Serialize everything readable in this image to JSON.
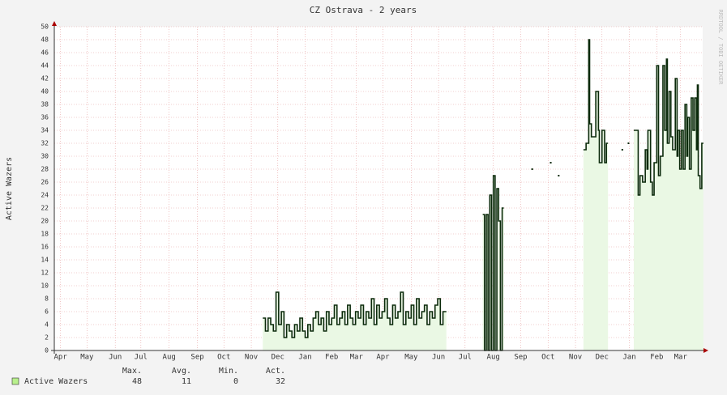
{
  "chart_data": {
    "type": "line",
    "title": "CZ Ostrava - 2 years",
    "y_label": "Active Wazers",
    "watermark": "RRDTOOL / TOBI OETIKER",
    "xlim": [
      0,
      734
    ],
    "ylim": [
      0,
      50
    ],
    "xticks": [
      {
        "value": 7,
        "label": "Apr"
      },
      {
        "value": 37,
        "label": "May"
      },
      {
        "value": 69,
        "label": "Jun"
      },
      {
        "value": 98,
        "label": "Jul"
      },
      {
        "value": 130,
        "label": "Aug"
      },
      {
        "value": 162,
        "label": "Sep"
      },
      {
        "value": 192,
        "label": "Oct"
      },
      {
        "value": 223,
        "label": "Nov"
      },
      {
        "value": 253,
        "label": "Dec"
      },
      {
        "value": 284,
        "label": "Jan"
      },
      {
        "value": 314,
        "label": "Feb"
      },
      {
        "value": 342,
        "label": "Mar"
      },
      {
        "value": 372,
        "label": "Apr"
      },
      {
        "value": 404,
        "label": "May"
      },
      {
        "value": 435,
        "label": "Jun"
      },
      {
        "value": 465,
        "label": "Jul"
      },
      {
        "value": 497,
        "label": "Aug"
      },
      {
        "value": 528,
        "label": "Sep"
      },
      {
        "value": 559,
        "label": "Oct"
      },
      {
        "value": 590,
        "label": "Nov"
      },
      {
        "value": 620,
        "label": "Dec"
      },
      {
        "value": 651,
        "label": "Jan"
      },
      {
        "value": 682,
        "label": "Feb"
      },
      {
        "value": 709,
        "label": "Mar"
      }
    ],
    "yticks": [
      0,
      2,
      4,
      6,
      8,
      10,
      12,
      14,
      16,
      18,
      20,
      22,
      24,
      26,
      28,
      30,
      32,
      34,
      36,
      38,
      40,
      42,
      44,
      46,
      48,
      50
    ],
    "grid": true,
    "x": [
      236,
      239,
      242,
      245,
      248,
      251,
      254,
      257,
      260,
      263,
      266,
      269,
      272,
      275,
      278,
      281,
      284,
      287,
      290,
      293,
      296,
      299,
      302,
      305,
      308,
      311,
      314,
      317,
      320,
      323,
      326,
      329,
      332,
      335,
      338,
      341,
      344,
      347,
      350,
      353,
      356,
      359,
      362,
      365,
      368,
      371,
      374,
      377,
      380,
      383,
      386,
      389,
      392,
      395,
      398,
      401,
      404,
      407,
      410,
      413,
      416,
      419,
      422,
      425,
      428,
      431,
      434,
      437,
      440,
      442,
      460,
      485,
      487,
      489,
      491,
      493,
      495,
      497,
      499,
      501,
      503,
      505,
      507,
      520,
      541,
      550,
      562,
      566,
      571,
      585,
      599,
      602,
      605,
      606,
      608,
      613,
      616,
      617,
      620,
      623,
      625,
      635,
      643,
      647,
      650,
      653,
      656,
      661,
      663,
      666,
      669,
      671,
      672,
      675,
      677,
      679,
      682,
      684,
      686,
      689,
      691,
      693,
      694,
      696,
      698,
      700,
      703,
      705,
      706,
      708,
      710,
      712,
      714,
      716,
      717,
      719,
      721,
      723,
      725,
      727,
      728,
      729,
      731,
      733
    ],
    "series": [
      {
        "name": "Active Wazers",
        "color": "#0b2a0b",
        "fill": "#eaf8e4",
        "legend_color": "#b8f08c",
        "values": [
          5,
          3,
          5,
          4,
          3,
          9,
          4,
          6,
          2,
          4,
          3,
          2,
          4,
          3,
          5,
          3,
          2,
          4,
          3,
          5,
          6,
          4,
          5,
          3,
          6,
          4,
          5,
          7,
          4,
          5,
          6,
          4,
          7,
          5,
          4,
          6,
          5,
          7,
          4,
          6,
          5,
          8,
          4,
          7,
          5,
          6,
          8,
          5,
          4,
          7,
          5,
          6,
          9,
          4,
          6,
          5,
          7,
          4,
          8,
          5,
          6,
          7,
          4,
          6,
          5,
          7,
          8,
          4,
          6,
          6,
          null,
          21,
          0,
          21,
          0,
          24,
          0,
          27,
          0,
          25,
          20,
          0,
          22,
          null,
          28,
          null,
          29,
          null,
          27,
          null,
          31,
          32,
          48,
          35,
          33,
          40,
          34,
          29,
          34,
          29,
          32,
          null,
          31,
          null,
          32,
          null,
          34,
          24,
          27,
          26,
          31,
          28,
          34,
          26,
          24,
          29,
          44,
          27,
          30,
          44,
          34,
          45,
          32,
          40,
          33,
          31,
          42,
          30,
          34,
          28,
          34,
          28,
          38,
          30,
          36,
          28,
          39,
          34,
          39,
          31,
          41,
          27,
          25,
          32
        ]
      }
    ],
    "legend_stats": {
      "headers": [
        "Max.",
        "Avg.",
        "Min.",
        "Act."
      ],
      "values": [
        48,
        11,
        0,
        32
      ]
    }
  }
}
